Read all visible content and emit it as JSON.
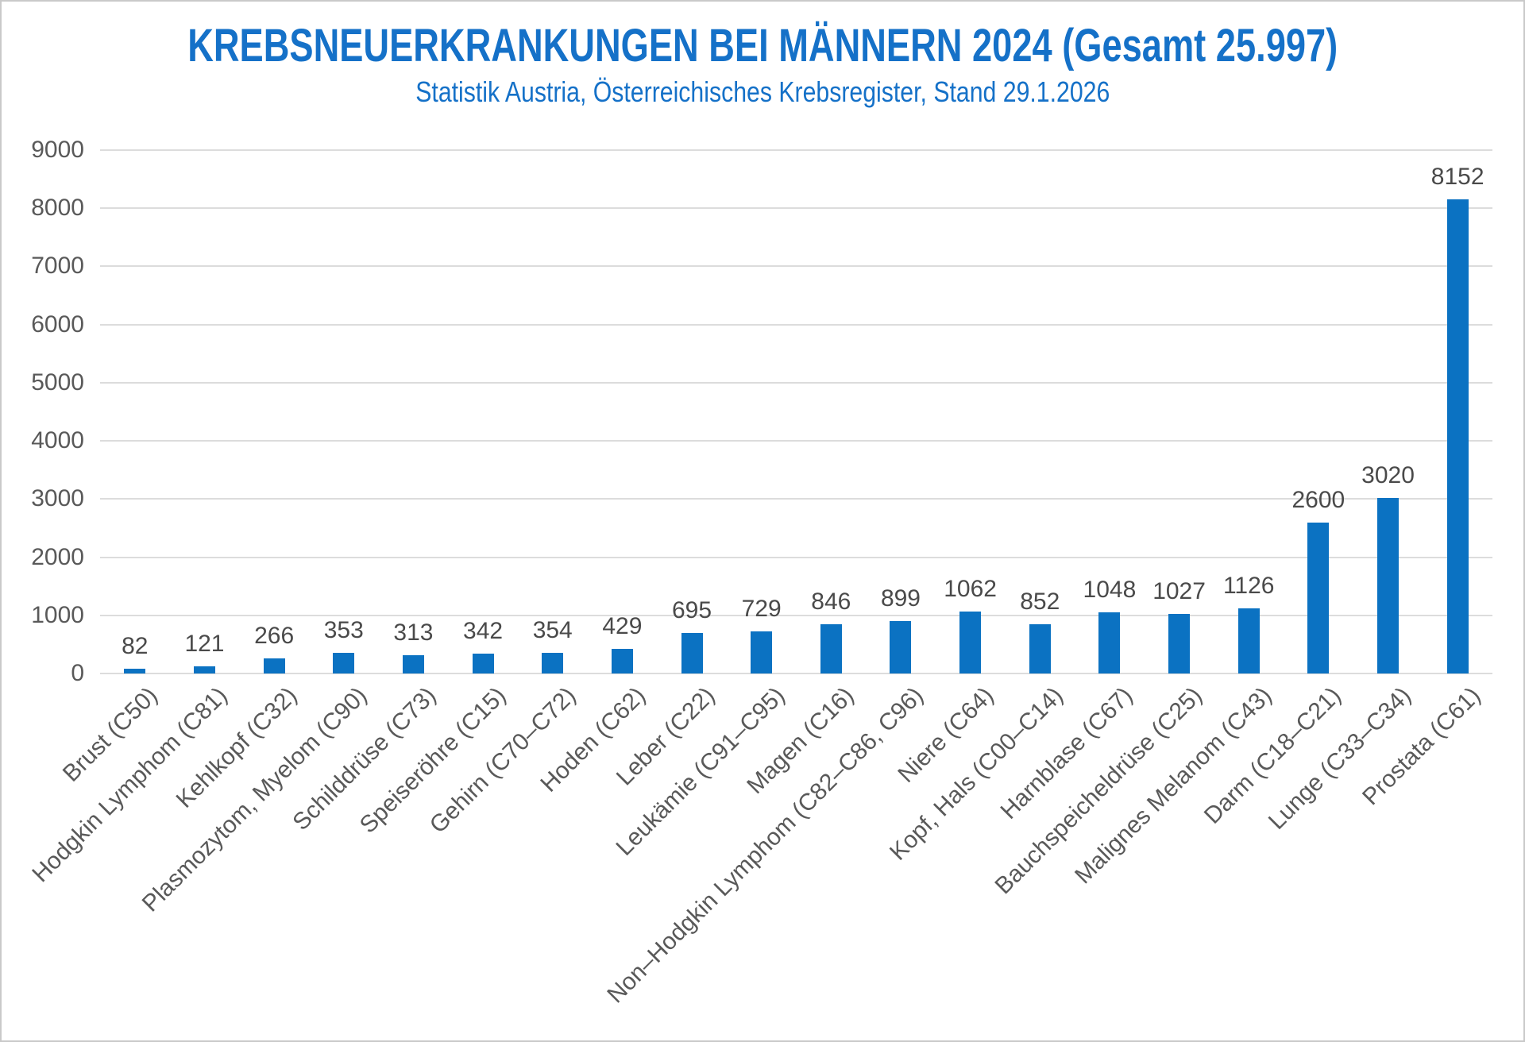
{
  "chart_data": {
    "type": "bar",
    "title": "KREBSNEUERKRANKUNGEN BEI MÄNNERN 2024 (Gesamt 25.997)",
    "subtitle": "Statistik Austria, Österreichisches Krebsregister, Stand 29.1.2026",
    "categories": [
      "Brust (C50)",
      "Hodgkin Lymphom (C81)",
      "Kehlkopf (C32)",
      "Plasmozytom, Myelom (C90)",
      "Schilddrüse (C73)",
      "Speiseröhre (C15)",
      "Gehirn (C70–C72)",
      "Hoden (C62)",
      "Leber (C22)",
      "Leukämie (C91–C95)",
      "Magen (C16)",
      "Non–Hodgkin Lymphom (C82–C86, C96)",
      "Niere (C64)",
      "Kopf, Hals (C00–C14)",
      "Harnblase (C67)",
      "Bauchspeicheldrüse (C25)",
      "Malignes Melanom (C43)",
      "Darm (C18–C21)",
      "Lunge (C33–C34)",
      "Prostata (C61)"
    ],
    "values": [
      82,
      121,
      266,
      353,
      313,
      342,
      354,
      429,
      695,
      729,
      846,
      899,
      1062,
      852,
      1048,
      1027,
      1126,
      2600,
      3020,
      8152
    ],
    "xlabel": "",
    "ylabel": "",
    "ylim": [
      0,
      9000
    ],
    "yticks": [
      0,
      1000,
      2000,
      3000,
      4000,
      5000,
      6000,
      7000,
      8000,
      9000
    ],
    "grid": true,
    "legend": false,
    "colors": {
      "bar": "#0b72c2",
      "title": "#1571c8",
      "axis_labels": "#595959",
      "value_labels": "#4a4a4a",
      "gridlines": "#dcdcdc"
    }
  }
}
